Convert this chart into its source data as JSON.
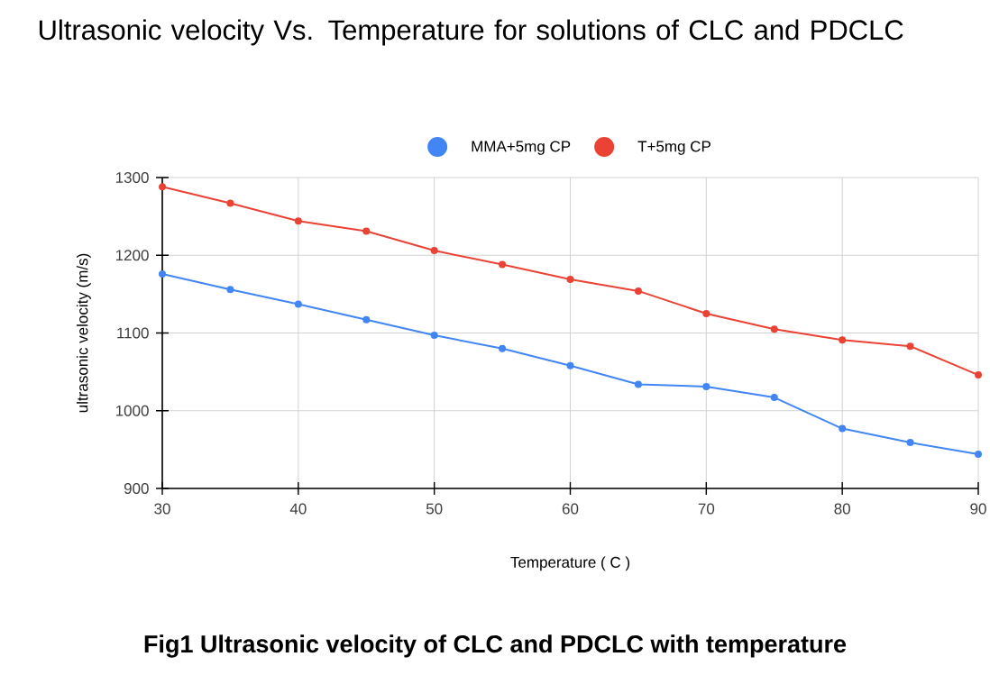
{
  "chart_data": {
    "type": "line",
    "title": "Ultrasonic velocity Vs. Temperature for solutions of CLC and PDCLC",
    "xlabel": "Temperature ( C )",
    "ylabel": "ultrasonic velocity (m/s)",
    "x": [
      30,
      35,
      40,
      45,
      50,
      55,
      60,
      65,
      70,
      75,
      80,
      85,
      90
    ],
    "series": [
      {
        "name": "MMA+5mg CP",
        "color": "#4285f4",
        "values": [
          1176,
          1156,
          1137,
          1117,
          1097,
          1080,
          1058,
          1034,
          1031,
          1017,
          977,
          959,
          944
        ]
      },
      {
        "name": "T+5mg CP",
        "color": "#ea4335",
        "values": [
          1288,
          1267,
          1244,
          1231,
          1206,
          1188,
          1169,
          1154,
          1125,
          1105,
          1091,
          1083,
          1046
        ]
      }
    ],
    "xlim": [
      30,
      90
    ],
    "ylim": [
      900,
      1300
    ],
    "xticks": [
      30,
      40,
      50,
      60,
      70,
      80,
      90
    ],
    "yticks": [
      900,
      1000,
      1100,
      1200,
      1300
    ],
    "grid": true,
    "legend": "top",
    "marker": "circle",
    "line_style": "solid",
    "annotations": [
      "Fig1 Ultrasonic velocity of CLC and PDCLC with temperature"
    ]
  }
}
